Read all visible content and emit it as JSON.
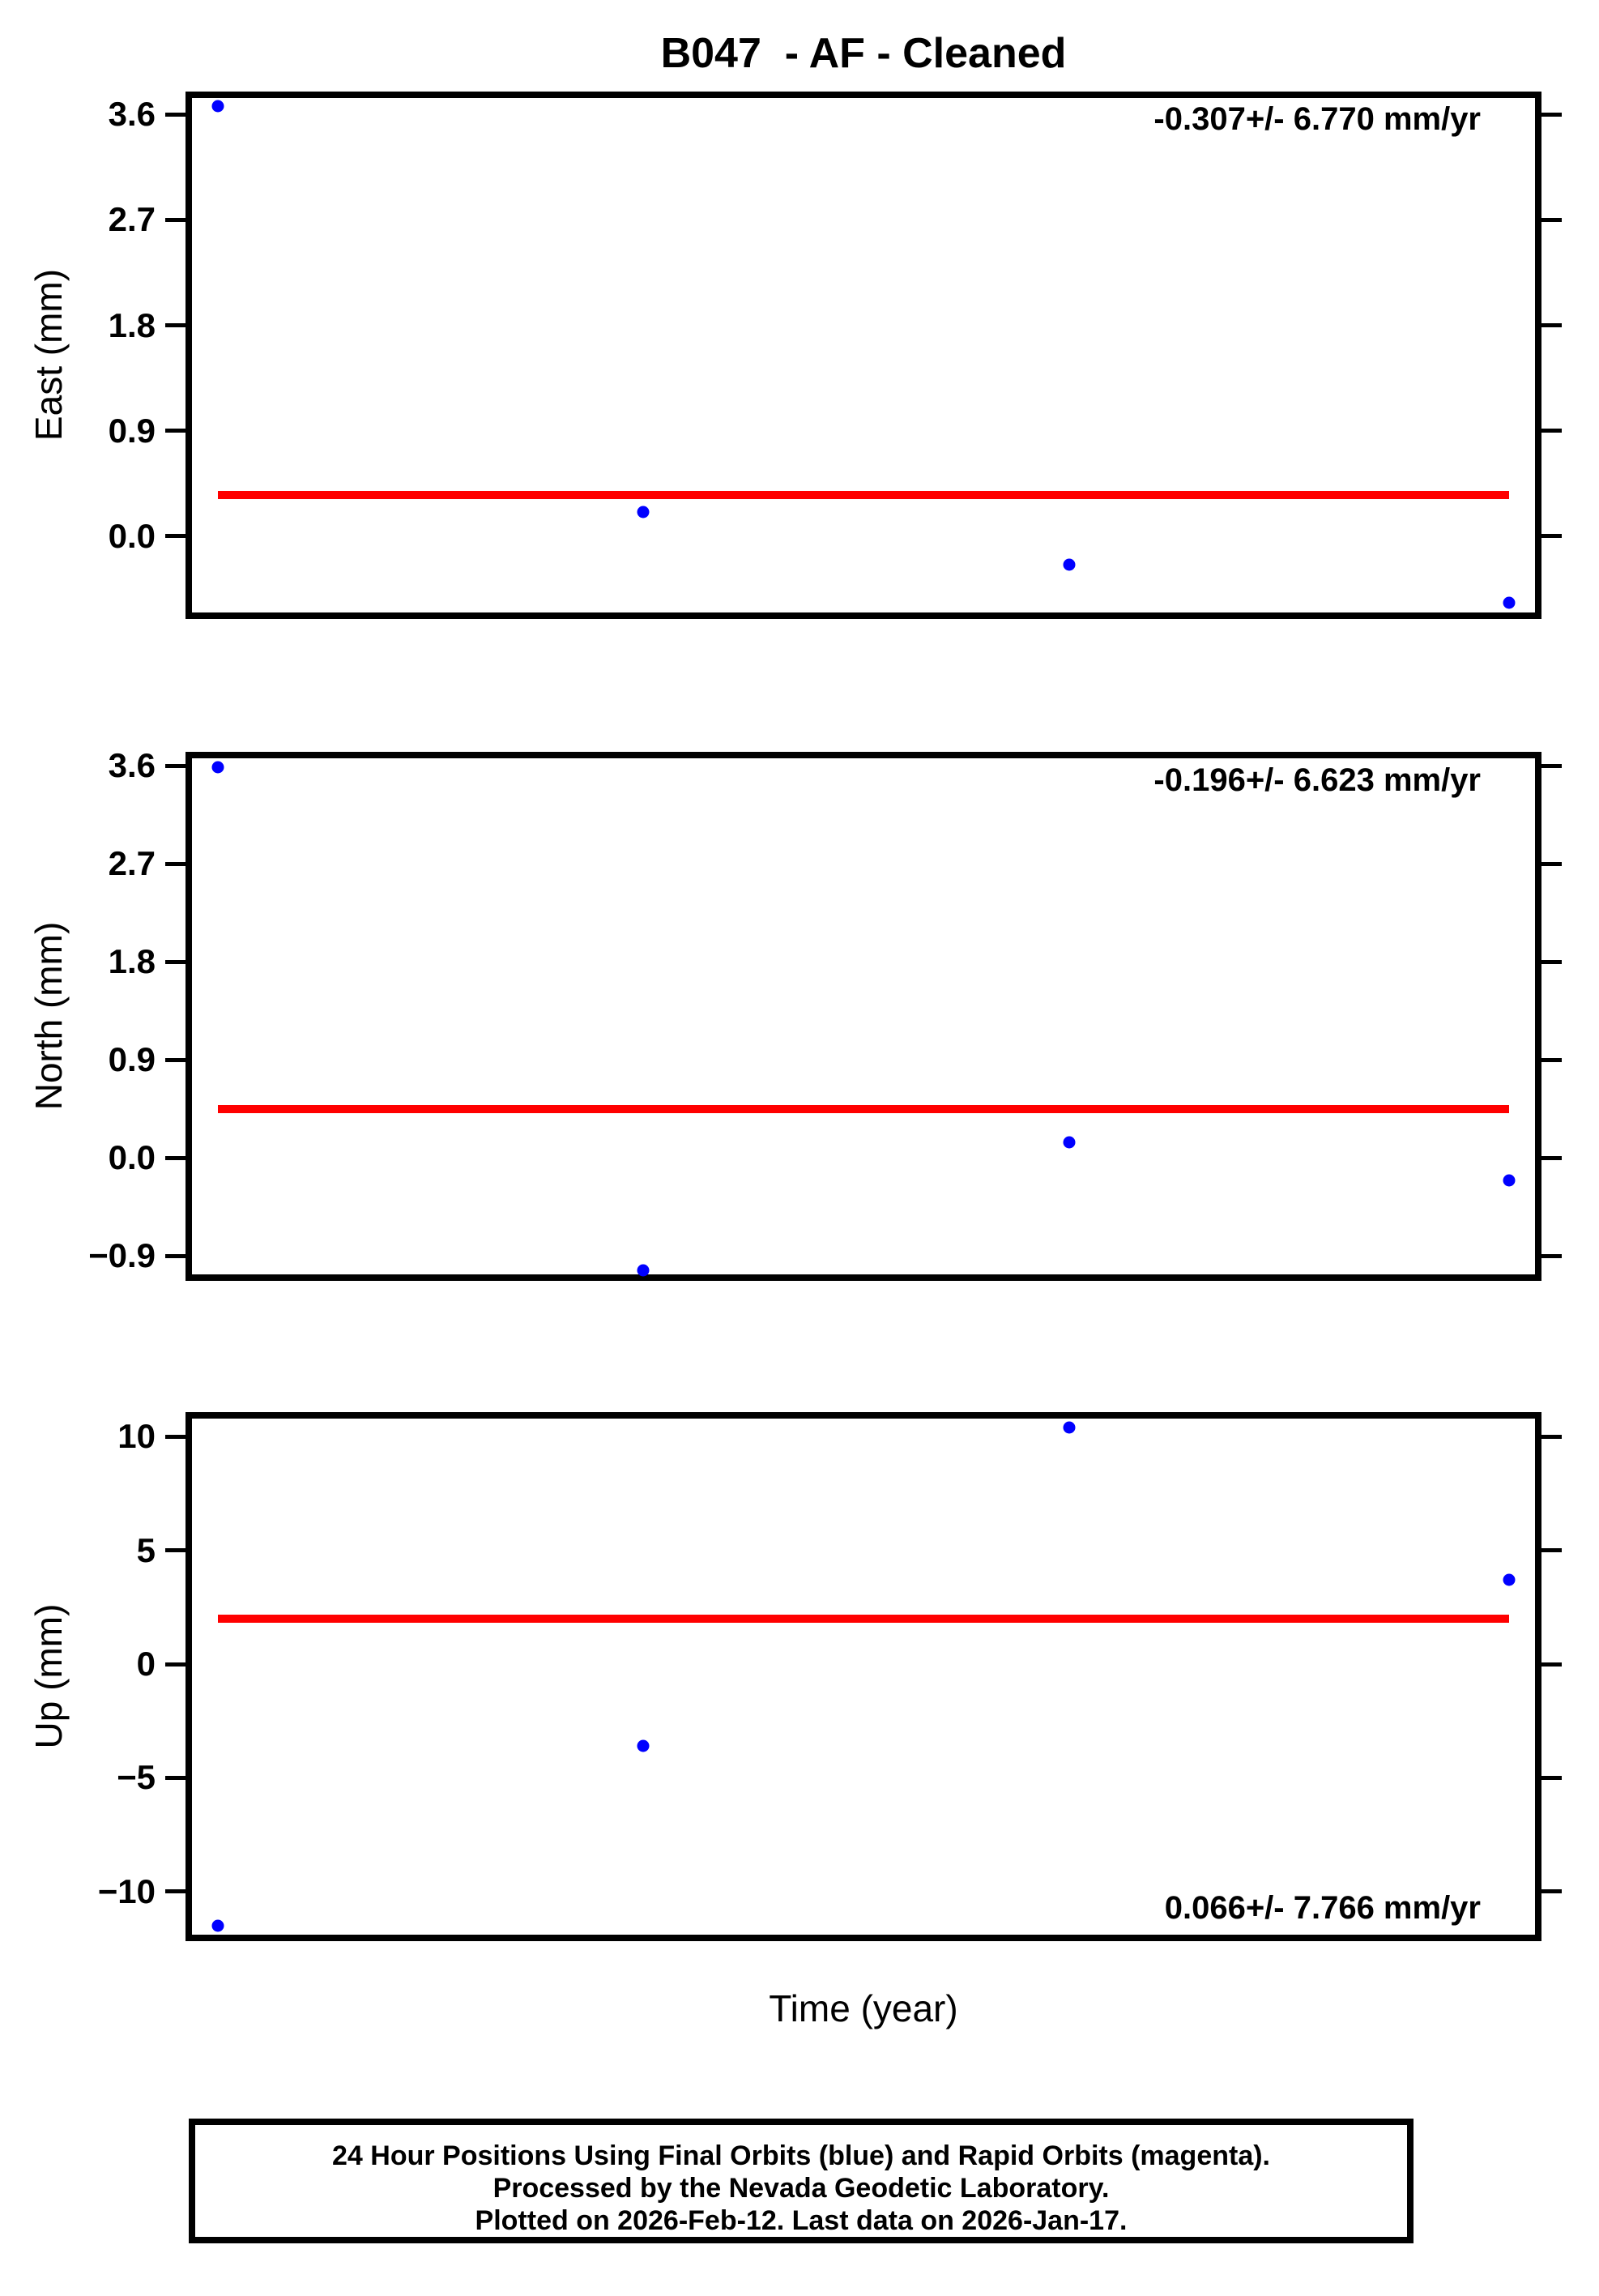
{
  "title": "B047  - AF - Cleaned",
  "xlabel": "Time (year)",
  "colors": {
    "point_final_orbit": "#0000ff",
    "point_rapid_orbit": "#ff00ff",
    "trend_line": "#ff0000",
    "axis": "#000000",
    "background": "#ffffff"
  },
  "footer": {
    "lines": [
      "24 Hour Positions Using Final Orbits (blue) and Rapid Orbits (magenta).",
      "Processed by the Nevada Geodetic Laboratory.",
      "Plotted on 2026-Feb-12. Last data on 2026-Jan-17."
    ]
  },
  "chart_data": [
    {
      "type": "scatter",
      "panel": "east",
      "ylabel": "East (mm)",
      "xlabel": "Time (year)",
      "annotation": "-0.307+/- 6.770 mm/yr",
      "annotation_position": "top-right",
      "ylim": [
        -0.65,
        3.74
      ],
      "yticks": [
        {
          "value": 3.6,
          "label": "3.6"
        },
        {
          "value": 2.7,
          "label": "2.7"
        },
        {
          "value": 1.8,
          "label": "1.8"
        },
        {
          "value": 0.9,
          "label": "0.9"
        },
        {
          "value": 0.0,
          "label": "0.0"
        }
      ],
      "x_tick_labels": [],
      "points": [
        {
          "x_fraction": 0.019,
          "value": 3.67
        },
        {
          "x_fraction": 0.336,
          "value": 0.21
        },
        {
          "x_fraction": 0.653,
          "value": -0.24
        },
        {
          "x_fraction": 0.981,
          "value": -0.57
        }
      ],
      "trend": {
        "value": 0.35,
        "x_start_fraction": 0.019,
        "x_end_fraction": 0.981,
        "rate_mm_per_yr": -0.307,
        "rate_uncertainty": 6.77
      },
      "grid": false,
      "legend": "none"
    },
    {
      "type": "scatter",
      "panel": "north",
      "ylabel": "North (mm)",
      "xlabel": "Time (year)",
      "annotation": "-0.196+/- 6.623 mm/yr",
      "annotation_position": "top-right",
      "ylim": [
        -1.07,
        3.67
      ],
      "yticks": [
        {
          "value": 3.6,
          "label": "3.6"
        },
        {
          "value": 2.7,
          "label": "2.7"
        },
        {
          "value": 1.8,
          "label": "1.8"
        },
        {
          "value": 0.9,
          "label": "0.9"
        },
        {
          "value": 0.0,
          "label": "0.0"
        },
        {
          "value": -0.9,
          "label": "−0.9"
        }
      ],
      "x_tick_labels": [],
      "points": [
        {
          "x_fraction": 0.019,
          "value": 3.59
        },
        {
          "x_fraction": 0.336,
          "value": -1.03
        },
        {
          "x_fraction": 0.653,
          "value": 0.14
        },
        {
          "x_fraction": 0.981,
          "value": -0.21
        }
      ],
      "trend": {
        "value": 0.45,
        "x_start_fraction": 0.019,
        "x_end_fraction": 0.981,
        "rate_mm_per_yr": -0.196,
        "rate_uncertainty": 6.623
      },
      "grid": false,
      "legend": "none"
    },
    {
      "type": "scatter",
      "panel": "up",
      "ylabel": "Up (mm)",
      "xlabel": "Time (year)",
      "annotation": "0.066+/- 7.766 mm/yr",
      "annotation_position": "bottom-right",
      "ylim": [
        -11.9,
        10.8
      ],
      "yticks": [
        {
          "value": 10,
          "label": "10"
        },
        {
          "value": 5,
          "label": "5"
        },
        {
          "value": 0,
          "label": "0"
        },
        {
          "value": -5,
          "label": "−5"
        },
        {
          "value": -10,
          "label": "−10"
        }
      ],
      "x_tick_labels": [],
      "points": [
        {
          "x_fraction": 0.019,
          "value": -11.5
        },
        {
          "x_fraction": 0.336,
          "value": -3.6
        },
        {
          "x_fraction": 0.653,
          "value": 10.4
        },
        {
          "x_fraction": 0.981,
          "value": 3.7
        }
      ],
      "trend": {
        "value": 2.0,
        "x_start_fraction": 0.019,
        "x_end_fraction": 0.981,
        "rate_mm_per_yr": 0.066,
        "rate_uncertainty": 7.766
      },
      "grid": false,
      "legend": "none"
    }
  ]
}
